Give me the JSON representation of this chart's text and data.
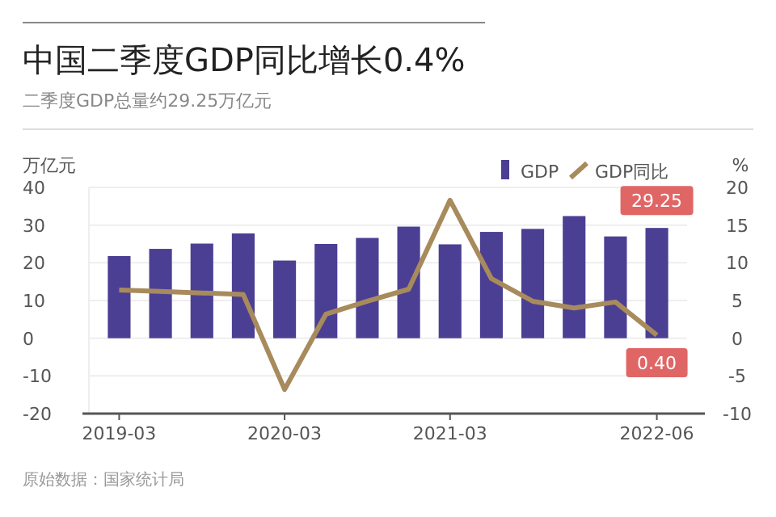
{
  "chart_data": {
    "type": "bar",
    "title": "中国二季度GDP同比增长0.4%",
    "subtitle": "二季度GDP总量约29.25万亿元",
    "ylabel": "万亿元",
    "y2label": "%",
    "categories": [
      "2019-03",
      null,
      null,
      null,
      "2020-03",
      null,
      null,
      null,
      "2021-03",
      null,
      null,
      null,
      null,
      "2022-06"
    ],
    "series": [
      {
        "name": "GDP",
        "color": "#4b3f94",
        "values": [
          21.8,
          23.7,
          25.1,
          27.8,
          20.6,
          25.0,
          26.6,
          29.6,
          24.9,
          28.2,
          29.0,
          32.4,
          27.0,
          29.25
        ],
        "value_labels": [
          null,
          null,
          null,
          null,
          null,
          null,
          null,
          null,
          null,
          null,
          null,
          null,
          null,
          "29.25"
        ]
      },
      {
        "name": "GDP同比",
        "type": "line",
        "axis": "y2",
        "color": "#a88b5c",
        "values": [
          6.4,
          6.2,
          6.0,
          5.8,
          -6.8,
          3.2,
          4.9,
          6.5,
          18.3,
          7.9,
          4.9,
          4.0,
          4.8,
          0.4
        ],
        "value_labels": [
          null,
          null,
          null,
          null,
          null,
          null,
          null,
          null,
          null,
          null,
          null,
          null,
          null,
          "0.40"
        ]
      }
    ],
    "ylim": [
      -20,
      40
    ],
    "yticks": [
      -20,
      -10,
      0,
      10,
      20,
      30,
      40
    ],
    "y2lim": [
      -10,
      20
    ],
    "y2ticks": [
      -10,
      -5,
      0,
      5,
      10,
      15,
      20
    ],
    "grid": "y",
    "legend": "top right",
    "marker": "none",
    "line_style": "solid",
    "annotations": [
      "原始数据：国家统计局"
    ]
  }
}
